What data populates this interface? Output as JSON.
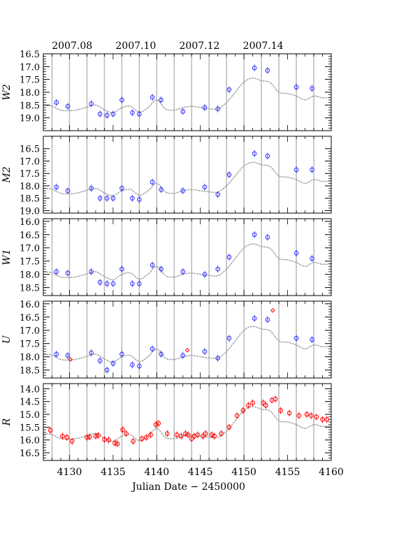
{
  "chart_data": {
    "type": "scatter",
    "xlabel": "Julian Date − 2450000",
    "top_axis": {
      "ticks": [
        {
          "x": 4130.3,
          "label": "2007.08"
        },
        {
          "x": 4137.6,
          "label": "2007.10"
        },
        {
          "x": 4144.9,
          "label": "2007.12"
        },
        {
          "x": 4152.2,
          "label": "2007.14"
        }
      ]
    },
    "xlim": [
      4127,
      4160
    ],
    "xticks": [
      4130,
      4135,
      4140,
      4145,
      4150,
      4155,
      4160
    ],
    "vertical_lines": [
      4128,
      4130,
      4132,
      4134,
      4136,
      4138,
      4140,
      4142,
      4144,
      4146,
      4148,
      4150,
      4152,
      4154,
      4156,
      4158
    ],
    "colors": {
      "swift_points": "#3030ff",
      "red_points": "#ff0000",
      "model": "#a0a0a0",
      "grid": "#bdbdbd"
    },
    "model_curve": [
      [
        4127,
        0.0
      ],
      [
        4128,
        0.04
      ],
      [
        4129,
        0.2
      ],
      [
        4130,
        0.22
      ],
      [
        4131,
        0.18
      ],
      [
        4132,
        0.08
      ],
      [
        4133,
        0.0
      ],
      [
        4134,
        0.18
      ],
      [
        4135,
        0.3
      ],
      [
        4136,
        0.1
      ],
      [
        4137,
        0.05
      ],
      [
        4138,
        0.28
      ],
      [
        4139,
        0.1
      ],
      [
        4140,
        -0.2
      ],
      [
        4141,
        0.15
      ],
      [
        4142,
        0.2
      ],
      [
        4143,
        0.1
      ],
      [
        4144,
        0.05
      ],
      [
        4145,
        0.1
      ],
      [
        4146,
        0.14
      ],
      [
        4147,
        0.15
      ],
      [
        4148,
        -0.1
      ],
      [
        4149,
        -0.5
      ],
      [
        4150,
        -0.9
      ],
      [
        4151,
        -1.05
      ],
      [
        4152,
        -0.95
      ],
      [
        4153,
        -0.88
      ],
      [
        4154,
        -0.5
      ],
      [
        4155,
        -0.45
      ],
      [
        4156,
        -0.35
      ],
      [
        4157,
        -0.2
      ],
      [
        4158,
        -0.35
      ],
      [
        4159,
        -0.28
      ],
      [
        4160,
        -0.3
      ]
    ],
    "panels": [
      {
        "ylabel": "W2",
        "ylim": [
          16.5,
          19.5
        ],
        "yticks": [
          "16.5",
          "17.0",
          "17.5",
          "18.0",
          "18.5",
          "19.0"
        ],
        "model_base": 18.5,
        "series": [
          {
            "marker": "circle",
            "color": "swift_points",
            "points": [
              [
                4128.5,
                18.4
              ],
              [
                4129.8,
                18.55
              ],
              [
                4132.5,
                18.45
              ],
              [
                4133.5,
                18.85
              ],
              [
                4134.3,
                18.9
              ],
              [
                4135,
                18.85
              ],
              [
                4136,
                18.3
              ],
              [
                4137.2,
                18.8
              ],
              [
                4138,
                18.85
              ],
              [
                4139.5,
                18.2
              ],
              [
                4140.5,
                18.3
              ],
              [
                4143,
                18.75
              ],
              [
                4145.5,
                18.6
              ],
              [
                4147,
                18.65
              ],
              [
                4148.3,
                17.9
              ],
              [
                4151.2,
                17.05
              ],
              [
                4152.7,
                17.15
              ],
              [
                4156,
                17.8
              ],
              [
                4157.8,
                17.85
              ]
            ]
          }
        ]
      },
      {
        "ylabel": "M2",
        "ylim": [
          16.0,
          19.1
        ],
        "yticks": [
          "16.5",
          "17.0",
          "17.5",
          "18.0",
          "18.5",
          "19.0"
        ],
        "model_base": 18.1,
        "series": [
          {
            "marker": "circle",
            "color": "swift_points",
            "points": [
              [
                4128.5,
                18.05
              ],
              [
                4129.8,
                18.2
              ],
              [
                4132.5,
                18.1
              ],
              [
                4133.5,
                18.5
              ],
              [
                4134.3,
                18.5
              ],
              [
                4135,
                18.5
              ],
              [
                4136,
                18.1
              ],
              [
                4137.2,
                18.5
              ],
              [
                4138,
                18.55
              ],
              [
                4139.5,
                17.85
              ],
              [
                4140.5,
                18.15
              ],
              [
                4143,
                18.2
              ],
              [
                4145.5,
                18.05
              ],
              [
                4147,
                18.35
              ],
              [
                4148.3,
                17.55
              ],
              [
                4151.2,
                16.7
              ],
              [
                4152.7,
                16.8
              ],
              [
                4156,
                17.35
              ],
              [
                4157.8,
                17.35
              ]
            ]
          }
        ]
      },
      {
        "ylabel": "W1",
        "ylim": [
          15.9,
          18.8
        ],
        "yticks": [
          "16.0",
          "16.5",
          "17.0",
          "17.5",
          "18.0",
          "18.5"
        ],
        "model_base": 17.9,
        "series": [
          {
            "marker": "circle",
            "color": "swift_points",
            "points": [
              [
                4128.5,
                17.9
              ],
              [
                4129.8,
                17.95
              ],
              [
                4132.5,
                17.9
              ],
              [
                4133.5,
                18.3
              ],
              [
                4134.3,
                18.35
              ],
              [
                4135,
                18.35
              ],
              [
                4136,
                17.8
              ],
              [
                4137.2,
                18.35
              ],
              [
                4138,
                18.35
              ],
              [
                4139.5,
                17.65
              ],
              [
                4140.5,
                17.8
              ],
              [
                4143,
                17.9
              ],
              [
                4145.5,
                18.0
              ],
              [
                4147,
                17.8
              ],
              [
                4148.3,
                17.35
              ],
              [
                4151.2,
                16.5
              ],
              [
                4152.7,
                16.6
              ],
              [
                4156,
                17.2
              ],
              [
                4157.8,
                17.4
              ]
            ]
          }
        ]
      },
      {
        "ylabel": "U",
        "ylim": [
          15.9,
          18.8
        ],
        "yticks": [
          "16.0",
          "16.5",
          "17.0",
          "17.5",
          "18.0",
          "18.5"
        ],
        "model_base": 17.9,
        "series": [
          {
            "marker": "circle",
            "color": "swift_points",
            "points": [
              [
                4128.5,
                17.9
              ],
              [
                4129.8,
                17.95
              ],
              [
                4132.5,
                17.85
              ],
              [
                4133.5,
                18.15
              ],
              [
                4134.3,
                18.5
              ],
              [
                4135,
                18.25
              ],
              [
                4136,
                17.9
              ],
              [
                4137.2,
                18.3
              ],
              [
                4138,
                18.35
              ],
              [
                4139.5,
                17.7
              ],
              [
                4140.5,
                17.9
              ],
              [
                4143,
                17.95
              ],
              [
                4145.5,
                17.8
              ],
              [
                4147,
                18.05
              ],
              [
                4148.3,
                17.3
              ],
              [
                4151.2,
                16.55
              ],
              [
                4152.7,
                16.6
              ],
              [
                4156,
                17.3
              ],
              [
                4157.8,
                17.35
              ]
            ]
          },
          {
            "marker": "diamond",
            "color": "red_points",
            "points": [
              [
                4130.1,
                18.1
              ],
              [
                4143.5,
                17.75
              ],
              [
                4153.3,
                16.25
              ]
            ]
          }
        ]
      },
      {
        "ylabel": "R",
        "ylim": [
          13.8,
          16.8
        ],
        "yticks": [
          "14.0",
          "14.5",
          "15.0",
          "15.5",
          "16.0",
          "16.5"
        ],
        "model_base": 15.75,
        "series": [
          {
            "marker": "circle",
            "color": "red_points",
            "points": [
              [
                4127.8,
                15.62
              ],
              [
                4129.2,
                15.85
              ],
              [
                4129.7,
                15.9
              ],
              [
                4130.3,
                16.05
              ],
              [
                4132,
                15.9
              ],
              [
                4132.3,
                15.88
              ],
              [
                4133,
                15.85
              ],
              [
                4133.3,
                15.82
              ],
              [
                4134,
                15.98
              ],
              [
                4134.5,
                16.0
              ],
              [
                4135.2,
                16.12
              ],
              [
                4135.5,
                16.15
              ],
              [
                4136.1,
                15.6
              ],
              [
                4136.5,
                15.75
              ],
              [
                4137.3,
                16.05
              ],
              [
                4138.3,
                15.95
              ],
              [
                4138.8,
                15.9
              ],
              [
                4139.3,
                15.8
              ],
              [
                4139.9,
                15.4
              ],
              [
                4140.2,
                15.35
              ],
              [
                4141.2,
                15.75
              ],
              [
                4142.3,
                15.8
              ],
              [
                4142.8,
                15.85
              ],
              [
                4143.3,
                15.75
              ],
              [
                4143.6,
                15.8
              ],
              [
                4144,
                15.95
              ],
              [
                4144.3,
                15.85
              ],
              [
                4144.7,
                15.8
              ],
              [
                4145.3,
                15.85
              ],
              [
                4145.6,
                15.75
              ],
              [
                4146.3,
                15.8
              ],
              [
                4146.6,
                15.85
              ],
              [
                4147.4,
                15.75
              ],
              [
                4148.3,
                15.5
              ],
              [
                4149.2,
                15.05
              ],
              [
                4149.9,
                14.85
              ],
              [
                4150.5,
                14.65
              ],
              [
                4151,
                14.55
              ],
              [
                4152.2,
                14.55
              ],
              [
                4152.5,
                14.65
              ],
              [
                4153.2,
                14.45
              ],
              [
                4153.6,
                14.4
              ],
              [
                4154.2,
                14.85
              ],
              [
                4155.2,
                14.95
              ],
              [
                4156.3,
                15.05
              ],
              [
                4157.2,
                15.0
              ],
              [
                4157.7,
                15.05
              ],
              [
                4158.3,
                15.1
              ],
              [
                4159,
                15.2
              ],
              [
                4159.5,
                15.2
              ]
            ]
          }
        ]
      }
    ]
  }
}
